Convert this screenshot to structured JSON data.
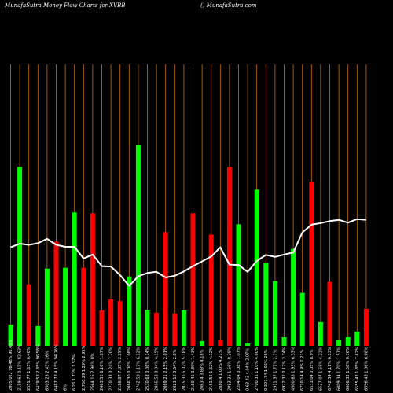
{
  "header": {
    "title": "MunafaSutra  Money Flow  Charts for XVBB",
    "site": "() MunafaSutra.com"
  },
  "colors": {
    "background": "#000000",
    "gridline": "#cc6e00",
    "up_bar": "#00ff00",
    "down_bar": "#ff0000",
    "price_line": "#ffffff"
  },
  "chart_data": {
    "type": "bar",
    "title": "MunafaSutra  Money Flow  Charts for XVBB",
    "grid": "vertical",
    "ylim": [
      0,
      100
    ],
    "categories": [
      "2005.022 98.48% 90.45%",
      "2159.62 0.15% 82.63%",
      "2551.77 1.63% 6.40%",
      "6439.53 2.35% 96.58%",
      "6503.23 2.43% 26%",
      "6467.73 4.15% 94.26%",
      "6%",
      "6.26 1.73% 1.57%",
      "2,750.29 1.29% 2.95%",
      "2564.16 2.96% 8%",
      "2463.55 6.16% 1.07%",
      "2270.33 0.24% 7.20%",
      "2166.87 7.05% 2.29%",
      "2066.30 0.00% 1.08%",
      "2742.59 1.17% 6.12%",
      "2530.63 0.06% 0.14%",
      "2066.53 0.04% 4.19%",
      "2069.21 2.15% 2.01%",
      "2023.12 3.64% 2.8%",
      "2035.31 5.02% 5.18%",
      "2160.46 0.39% 1.43%",
      "2063.4 3.83% 4.18%",
      "2161.55 1.62% 4.12%",
      "2080.4 1.00% 4.21%",
      "2083.35 1.56% 8.39%",
      "2204.04 0.08% 7.07%",
      "0 63.43 4.04% 2.07%",
      "2700.35 1.10% 4.00%",
      "0 307.74 1.06% 26%",
      "2911.37 1.77% 2.7%",
      "6922.32 0.12% 3.34%",
      "4500.63 1.93% 6.33%",
      "6710.14 4.9% 1.21%",
      "6533.04 0.05% 8.9%",
      "6537.07 1.58% 4.22%",
      "6742.34 4.11% 0.13%",
      "6009.34 1.70% 1.57%",
      "6606.32 1.58% 0.76%",
      "6555.47 1.35% 7.62%",
      "6596.45 1.06% 6.08%"
    ],
    "series": [
      {
        "values": [
          10.6,
          88.9,
          30.6,
          9.8,
          38.4,
          51.8,
          38.8,
          66.3,
          38.8,
          65.9,
          17.6,
          23.1,
          22.2,
          34.5,
          100,
          17.9,
          16.5,
          56.5,
          16.1,
          17.7,
          65.9,
          2.4,
          55.3,
          3.1,
          89.0,
          60.4,
          1.2,
          77.6,
          41.2,
          32.2,
          4.3,
          48.2,
          26.3,
          81.6,
          11.8,
          31.8,
          3.1,
          4.3,
          7.1,
          18.4
        ],
        "colors": [
          "green",
          "green",
          "red",
          "green",
          "green",
          "red",
          "green",
          "green",
          "red",
          "red",
          "red",
          "red",
          "red",
          "green",
          "green",
          "green",
          "red",
          "red",
          "red",
          "green",
          "red",
          "green",
          "red",
          "red",
          "red",
          "green",
          "green",
          "green",
          "green",
          "green",
          "green",
          "green",
          "green",
          "red",
          "green",
          "red",
          "green",
          "green",
          "green",
          "red"
        ]
      },
      {
        "name": "Price",
        "values": [
          49.0,
          50.8,
          50.2,
          51.0,
          53.2,
          50.2,
          49.2,
          49.2,
          43.4,
          45.4,
          39.6,
          39.4,
          35.2,
          29.8,
          34.6,
          36.2,
          36.8,
          34.0,
          34.8,
          37.0,
          39.6,
          42.0,
          44.4,
          49.0,
          40.4,
          40.2,
          36.8,
          42.2,
          45.2,
          44.2,
          45.4,
          46.4,
          56.4,
          60.2,
          61.0,
          62.0,
          62.6,
          61.2,
          63.0,
          62.6
        ]
      }
    ]
  },
  "x_ticks": [
    "2005.022 98.48% 90.45%",
    "2159.62 0.15% 82.63%",
    "2551.77 1.63% 6.40%",
    "6439.53 2.35% 96.58%",
    "6503.23 2.43% 26%",
    "6467.73 4.15% 94.26%",
    "6%",
    "6.26 1.73% 1.57%",
    "2,750.29 1.29% 2.95%",
    "2564.16 2.96% 8%",
    "2463.55 6.16% 1.07%",
    "2270.33 0.24% 7.20%",
    "2166.87 7.05% 2.29%",
    "2066.30 0.00% 1.08%",
    "2742.59 1.17% 6.12%",
    "2530.63 0.06% 0.14%",
    "2066.53 0.04% 4.19%",
    "2069.21 2.15% 2.01%",
    "2023.12 3.64% 2.8%",
    "2035.31 5.02% 5.18%",
    "2160.46 0.39% 1.43%",
    "2063.4 3.83% 4.18%",
    "2161.55 1.62% 4.12%",
    "2080.4 1.00% 4.21%",
    "2083.35 1.56% 8.39%",
    "2204.04 0.08% 7.07%",
    "0 63.43 4.04% 2.07%",
    "2700.35 1.10% 4.00%",
    "0 307.74 1.06% 26%",
    "2911.37 1.77% 2.7%",
    "6922.32 0.12% 3.34%",
    "4500.63 1.93% 6.33%",
    "6710.14 4.9% 1.21%",
    "6533.04 0.05% 8.9%",
    "6537.07 1.58% 4.22%",
    "6742.34 4.11% 0.13%",
    "6009.34 1.70% 1.57%",
    "6606.32 1.58% 0.76%",
    "6555.47 1.35% 7.62%",
    "6596.45 1.06% 6.08%"
  ]
}
